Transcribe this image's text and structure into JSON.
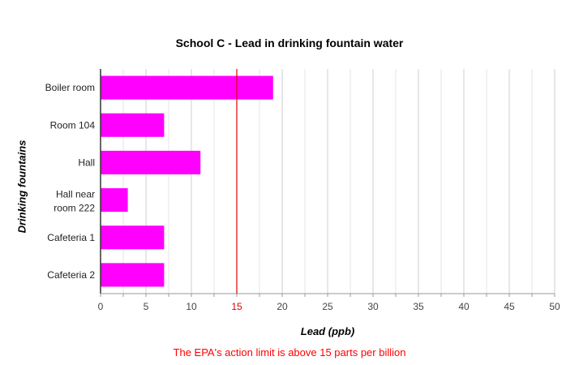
{
  "chart_data": {
    "type": "bar",
    "orientation": "horizontal",
    "title": "School C - Lead in drinking fountain water",
    "xlabel": "Lead (ppb)",
    "ylabel": "Drinking fountains",
    "categories": [
      "Boiler room",
      "Room 104",
      "Hall",
      "Hall near room 222",
      "Cafeteria 1",
      "Cafeteria 2"
    ],
    "values": [
      19,
      7,
      11,
      3,
      7,
      7
    ],
    "xlim": [
      0,
      50
    ],
    "xticks": [
      "0",
      "5",
      "10",
      "15",
      "20",
      "25",
      "30",
      "35",
      "40",
      "45",
      "50"
    ],
    "grid": true,
    "bar_color": "#ff00ff",
    "reference_line": {
      "value": 15,
      "color": "#e00000"
    },
    "note": "The EPA's action limit is above 15 parts per billion",
    "note_color": "#ff0000"
  }
}
